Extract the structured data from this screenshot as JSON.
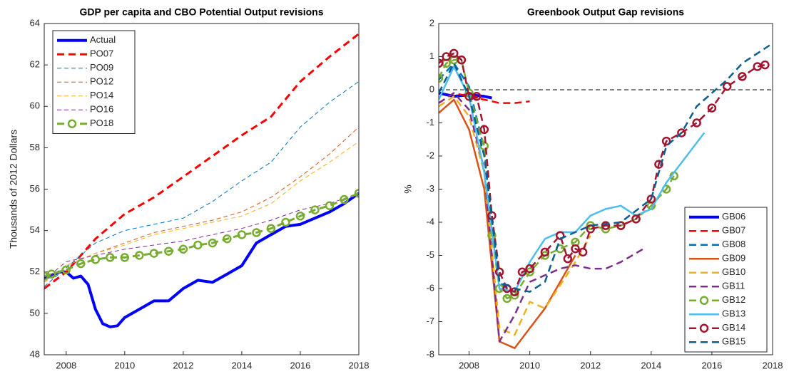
{
  "chart_data": [
    {
      "type": "line",
      "title": "GDP per capita and CBO Potential Output revisions",
      "ylabel": "Thousands of 2012 Dollars",
      "xlim": [
        2007.25,
        2018
      ],
      "xticks": [
        2008,
        2010,
        2012,
        2014,
        2016,
        2018
      ],
      "ylim": [
        48,
        64
      ],
      "yticks": [
        48,
        50,
        52,
        54,
        56,
        58,
        60,
        62,
        64
      ],
      "legend": "northwest",
      "series": [
        {
          "name": "Actual",
          "color": "#0000ff",
          "dash": "solid",
          "width": 4,
          "x": [
            2007.25,
            2007.5,
            2007.75,
            2008,
            2008.25,
            2008.5,
            2008.75,
            2009,
            2009.25,
            2009.5,
            2009.75,
            2010,
            2010.5,
            2011,
            2011.5,
            2012,
            2012.5,
            2013,
            2013.5,
            2014,
            2014.5,
            2015,
            2015.5,
            2016,
            2016.5,
            2017,
            2017.5,
            2018
          ],
          "values": [
            51.7,
            51.8,
            52.0,
            52.0,
            51.7,
            51.8,
            51.4,
            50.2,
            49.5,
            49.35,
            49.4,
            49.8,
            50.2,
            50.6,
            50.6,
            51.2,
            51.6,
            51.5,
            51.9,
            52.3,
            53.4,
            53.8,
            54.2,
            54.3,
            54.6,
            54.9,
            55.3,
            55.8
          ]
        },
        {
          "name": "PO07",
          "color": "#ff0000",
          "dash": "dashed",
          "width": 3,
          "x": [
            2007.25,
            2008,
            2009,
            2010,
            2011,
            2012,
            2013,
            2014,
            2015,
            2016,
            2017,
            2018
          ],
          "values": [
            51.2,
            52.0,
            53.6,
            54.8,
            55.6,
            56.6,
            57.6,
            58.6,
            59.5,
            61.2,
            62.4,
            63.5
          ]
        },
        {
          "name": "PO09",
          "color": "#0072bd",
          "dash": "dashed",
          "width": 1,
          "x": [
            2007.25,
            2008,
            2009,
            2010,
            2011,
            2012,
            2013,
            2014,
            2015,
            2016,
            2017,
            2018
          ],
          "values": [
            51.3,
            52.2,
            53.4,
            54.0,
            54.3,
            54.6,
            55.4,
            56.4,
            57.3,
            59.0,
            60.2,
            61.2
          ]
        },
        {
          "name": "PO12",
          "color": "#d95319",
          "dash": "dashed",
          "width": 1,
          "x": [
            2007.25,
            2008,
            2009,
            2010,
            2011,
            2012,
            2013,
            2014,
            2015,
            2016,
            2017,
            2018
          ],
          "values": [
            51.5,
            52.3,
            52.9,
            53.4,
            53.9,
            54.2,
            54.5,
            54.9,
            55.6,
            56.6,
            57.7,
            59.0
          ]
        },
        {
          "name": "PO14",
          "color": "#edb120",
          "dash": "dashed",
          "width": 1,
          "x": [
            2007.25,
            2008,
            2009,
            2010,
            2011,
            2012,
            2013,
            2014,
            2015,
            2016,
            2017,
            2018
          ],
          "values": [
            51.5,
            52.3,
            52.9,
            53.3,
            53.8,
            54.1,
            54.4,
            54.7,
            55.3,
            56.4,
            57.3,
            58.3
          ]
        },
        {
          "name": "PO16",
          "color": "#7e2f8e",
          "dash": "dashed",
          "width": 1,
          "x": [
            2007.25,
            2008,
            2009,
            2010,
            2011,
            2012,
            2013,
            2014,
            2015,
            2016,
            2017,
            2018
          ],
          "values": [
            51.6,
            52.5,
            52.8,
            53.1,
            53.3,
            53.5,
            53.8,
            54.1,
            54.5,
            55.0,
            55.3,
            55.8
          ]
        },
        {
          "name": "PO18",
          "color": "#77ac30",
          "dash": "dashed",
          "width": 3,
          "marker": "circle",
          "x": [
            2007.25,
            2007.5,
            2008,
            2008.5,
            2009,
            2009.5,
            2010,
            2010.5,
            2011,
            2011.5,
            2012,
            2012.5,
            2013,
            2013.5,
            2014,
            2014.5,
            2015,
            2015.5,
            2016,
            2016.5,
            2017,
            2017.5,
            2018
          ],
          "values": [
            51.8,
            51.9,
            52.1,
            52.4,
            52.6,
            52.7,
            52.7,
            52.8,
            52.9,
            53.0,
            53.1,
            53.3,
            53.4,
            53.6,
            53.8,
            53.9,
            54.1,
            54.4,
            54.7,
            55.0,
            55.2,
            55.5,
            55.8
          ]
        }
      ]
    },
    {
      "type": "line",
      "title": "Greenbook Output Gap revisions",
      "ylabel": "%",
      "xlim": [
        2007,
        2018
      ],
      "xticks": [
        2008,
        2010,
        2012,
        2014,
        2016,
        2018
      ],
      "ylim": [
        -8,
        2
      ],
      "yticks": [
        -8,
        -7,
        -6,
        -5,
        -4,
        -3,
        -2,
        -1,
        0,
        1,
        2
      ],
      "legend": "southeast",
      "reference_line": 0,
      "series": [
        {
          "name": "GB06",
          "color": "#0000ff",
          "dash": "solid",
          "width": 4,
          "x": [
            2007,
            2007.5,
            2008,
            2008.5,
            2008.75
          ],
          "values": [
            -0.1,
            -0.2,
            -0.15,
            -0.2,
            -0.25
          ]
        },
        {
          "name": "GB07",
          "color": "#ff0000",
          "dash": "dashed",
          "width": 2.5,
          "x": [
            2007,
            2007.5,
            2008,
            2008.5,
            2009,
            2009.5,
            2010
          ],
          "values": [
            -0.4,
            -0.1,
            -0.2,
            -0.3,
            -0.4,
            -0.4,
            -0.35
          ]
        },
        {
          "name": "GB08",
          "color": "#0072bd",
          "dash": "dashed",
          "width": 2.5,
          "x": [
            2007,
            2007.5,
            2008,
            2008.5,
            2009,
            2009.25
          ],
          "values": [
            0.3,
            0.8,
            0.1,
            -1.8,
            -5.8,
            -6.0
          ]
        },
        {
          "name": "GB09",
          "color": "#d95319",
          "dash": "solid",
          "width": 2.5,
          "x": [
            2007,
            2007.5,
            2008,
            2008.5,
            2009,
            2009.5,
            2010,
            2010.5,
            2011,
            2011.5
          ],
          "values": [
            -0.7,
            -0.3,
            -1.2,
            -3.0,
            -7.6,
            -7.8,
            -7.2,
            -6.6,
            -5.8,
            -5.0
          ]
        },
        {
          "name": "GB10",
          "color": "#edb120",
          "dash": "dashed",
          "width": 2.5,
          "x": [
            2007,
            2007.5,
            2008,
            2008.5,
            2009,
            2009.5,
            2010,
            2010.5,
            2011,
            2011.5,
            2012
          ],
          "values": [
            -0.5,
            -0.2,
            -0.8,
            -2.5,
            -7.2,
            -7.4,
            -6.4,
            -6.6,
            -5.9,
            -5.2,
            -4.4
          ]
        },
        {
          "name": "GB11",
          "color": "#7e2f8e",
          "dash": "dashed",
          "width": 2.5,
          "x": [
            2007,
            2007.5,
            2008,
            2008.5,
            2009,
            2009.5,
            2010,
            2010.5,
            2011,
            2011.5,
            2012,
            2012.5,
            2013,
            2013.75
          ],
          "values": [
            -0.4,
            -0.1,
            -0.6,
            -2.4,
            -7.6,
            -6.8,
            -5.8,
            -5.6,
            -5.4,
            -5.3,
            -5.4,
            -5.4,
            -5.2,
            -4.8
          ]
        },
        {
          "name": "GB12",
          "color": "#77ac30",
          "dash": "dashed",
          "width": 2.5,
          "marker": "circle",
          "x": [
            2007,
            2007.25,
            2007.5,
            2007.75,
            2008,
            2008.5,
            2008.75,
            2009,
            2009.25,
            2009.5,
            2010,
            2010.5,
            2011,
            2011.5,
            2012,
            2012.5,
            2013,
            2013.5,
            2014,
            2014.5,
            2014.75
          ],
          "values": [
            0.35,
            0.8,
            0.9,
            0.9,
            -0.1,
            -1.7,
            -4.4,
            -6.0,
            -6.3,
            -6.2,
            -5.5,
            -5.0,
            -4.8,
            -4.6,
            -4.1,
            -4.2,
            -4.1,
            -3.9,
            -3.5,
            -3.0,
            -2.6
          ]
        },
        {
          "name": "GB13",
          "color": "#4dbeee",
          "dash": "solid",
          "width": 2.5,
          "x": [
            2007,
            2007.5,
            2008,
            2008.5,
            2009,
            2009.5,
            2010,
            2010.5,
            2011,
            2011.5,
            2012,
            2012.5,
            2013,
            2013.5,
            2014,
            2014.5,
            2015,
            2015.75
          ],
          "values": [
            -0.3,
            0.7,
            -0.2,
            -2.5,
            -6.0,
            -6.1,
            -5.2,
            -4.5,
            -4.3,
            -4.3,
            -3.8,
            -3.6,
            -3.5,
            -3.8,
            -3.6,
            -2.8,
            -2.2,
            -1.3
          ]
        },
        {
          "name": "GB14",
          "color": "#a2142f",
          "dash": "dashed",
          "width": 2.5,
          "marker": "circle",
          "x": [
            2007,
            2007.25,
            2007.5,
            2007.75,
            2008,
            2008.25,
            2008.5,
            2008.75,
            2009,
            2009.25,
            2009.5,
            2009.75,
            2010,
            2010.5,
            2011,
            2011.25,
            2011.5,
            2011.75,
            2012,
            2012.5,
            2013,
            2013.5,
            2014,
            2014.25,
            2014.5,
            2015,
            2015.5,
            2016,
            2016.5,
            2017,
            2017.5,
            2017.75
          ],
          "values": [
            0.8,
            1.0,
            1.1,
            0.9,
            -0.2,
            -0.2,
            -1.2,
            -3.8,
            -5.5,
            -6.0,
            -6.1,
            -5.5,
            -5.4,
            -4.9,
            -4.4,
            -5.1,
            -4.8,
            -4.9,
            -4.2,
            -4.1,
            -4.1,
            -3.9,
            -3.3,
            -2.25,
            -1.55,
            -1.3,
            -1.0,
            -0.55,
            0.1,
            0.4,
            0.7,
            0.75
          ]
        },
        {
          "name": "GB15",
          "color": "#0a5f8f",
          "dash": "dashed",
          "width": 2.5,
          "x": [
            2007,
            2007.5,
            2008,
            2008.5,
            2009,
            2009.5,
            2010,
            2010.5,
            2011,
            2011.5,
            2012,
            2013,
            2014,
            2014.5,
            2015,
            2015.5,
            2016,
            2016.5,
            2017,
            2017.5,
            2018
          ],
          "values": [
            -0.1,
            0.8,
            -0.2,
            -2.0,
            -5.8,
            -6.0,
            -6.1,
            -5.8,
            -4.5,
            -4.3,
            -4.1,
            -4.0,
            -3.3,
            -1.7,
            -1.3,
            -0.5,
            -0.1,
            0.3,
            0.8,
            1.1,
            1.4
          ]
        }
      ]
    }
  ]
}
